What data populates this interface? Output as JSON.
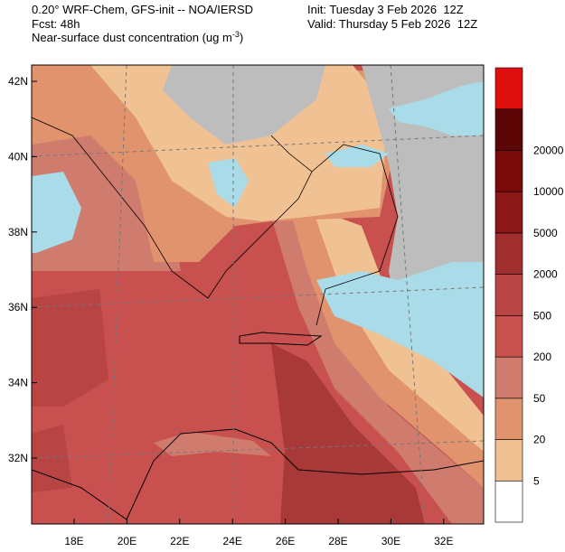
{
  "header": {
    "title": "0.20° WRF-Chem, GFS-init -- NOA/IERSD",
    "forecast": "Fcst: 48h",
    "variable": "Near-surface dust concentration (ug m",
    "variable_exponent": "-3",
    "variable_close": ")",
    "init": "Init: Tuesday 3 Feb 2026  12Z",
    "valid": "Valid: Thursday 5 Feb 2026  12Z"
  },
  "map": {
    "lat_ticks": [
      {
        "value": 42,
        "label": "42N"
      },
      {
        "value": 40,
        "label": "40N"
      },
      {
        "value": 38,
        "label": "38N"
      },
      {
        "value": 36,
        "label": "36N"
      },
      {
        "value": 34,
        "label": "34N"
      },
      {
        "value": 32,
        "label": "32N"
      }
    ],
    "lon_ticks": [
      {
        "value": 18,
        "label": "18E"
      },
      {
        "value": 20,
        "label": "20E"
      },
      {
        "value": 22,
        "label": "22E"
      },
      {
        "value": 24,
        "label": "24E"
      },
      {
        "value": 26,
        "label": "26E"
      },
      {
        "value": 28,
        "label": "28E"
      },
      {
        "value": 30,
        "label": "30E"
      },
      {
        "value": 32,
        "label": "32E"
      }
    ]
  },
  "colorbar": {
    "levels": [
      5,
      20,
      50,
      200,
      500,
      2000,
      5000,
      10000,
      20000
    ],
    "colors": [
      "#ffffff",
      "#efc193",
      "#e0936d",
      "#cf7b6e",
      "#c8504e",
      "#b84444",
      "#a22f2f",
      "#8b1717",
      "#780a0a",
      "#5c0505",
      "#e01010"
    ]
  }
}
